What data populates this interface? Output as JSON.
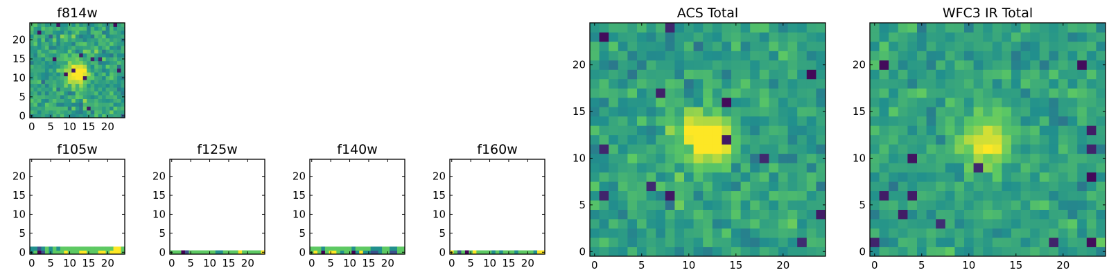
{
  "figure": {
    "colormap": [
      "#440154",
      "#3b528b",
      "#21908d",
      "#5dc963",
      "#fde725"
    ],
    "background": "#ffffff"
  },
  "chart_data": [
    {
      "type": "heatmap",
      "name": "f814w",
      "title": "f814w",
      "xlim": [
        0,
        25
      ],
      "ylim": [
        0,
        25
      ],
      "xticks": [
        0,
        5,
        10,
        15,
        20
      ],
      "yticks": [
        0,
        5,
        10,
        15,
        20
      ],
      "rows": 25,
      "cols": 25,
      "source_center": [
        12,
        11
      ],
      "source_width": 2.0,
      "source_amp": 1.3,
      "noise_level": 0.62,
      "seed": 11
    },
    {
      "type": "heatmap",
      "name": "f105w",
      "title": "f105w",
      "xlim": [
        0,
        25
      ],
      "ylim": [
        0,
        25
      ],
      "xticks": [
        0,
        5,
        10,
        15,
        20
      ],
      "yticks": [
        0,
        5,
        10,
        15,
        20
      ],
      "rows": 2,
      "cols": 25,
      "strip_values": [
        [
          2,
          3,
          0,
          1,
          3,
          2,
          3,
          3,
          3,
          4,
          3,
          3,
          3,
          4,
          4,
          3,
          3,
          3,
          4,
          4,
          3,
          4,
          4,
          4,
          3
        ],
        [
          2,
          2,
          1,
          2,
          3,
          2,
          3,
          2,
          3,
          3,
          3,
          3,
          3,
          3,
          3,
          3,
          3,
          3,
          3,
          3,
          3,
          3,
          4,
          4,
          3
        ]
      ]
    },
    {
      "type": "heatmap",
      "name": "f125w",
      "title": "f125w",
      "xlim": [
        0,
        25
      ],
      "ylim": [
        0,
        25
      ],
      "xticks": [
        0,
        5,
        10,
        15,
        20
      ],
      "yticks": [
        0,
        5,
        10,
        15,
        20
      ],
      "rows": 1,
      "cols": 25,
      "strip_values": [
        [
          3,
          3,
          3,
          0,
          1,
          3,
          3,
          3,
          3,
          3,
          3,
          3,
          2,
          2,
          3,
          3,
          3,
          3,
          4,
          3,
          3,
          3,
          3,
          3,
          4
        ]
      ]
    },
    {
      "type": "heatmap",
      "name": "f140w",
      "title": "f140w",
      "xlim": [
        0,
        25
      ],
      "ylim": [
        0,
        25
      ],
      "xticks": [
        0,
        5,
        10,
        15,
        20
      ],
      "yticks": [
        0,
        5,
        10,
        15,
        20
      ],
      "rows": 2,
      "cols": 25,
      "strip_values": [
        [
          3,
          4,
          3,
          0,
          3,
          4,
          4,
          3,
          2,
          3,
          3,
          0,
          2,
          4,
          2,
          2,
          1,
          1,
          2,
          3,
          3,
          1,
          1,
          3,
          3
        ],
        [
          3,
          3,
          3,
          2,
          3,
          3,
          3,
          3,
          3,
          3,
          3,
          2,
          3,
          3,
          3,
          3,
          2,
          2,
          2,
          3,
          3,
          2,
          2,
          3,
          3
        ]
      ]
    },
    {
      "type": "heatmap",
      "name": "f160w",
      "title": "f160w",
      "xlim": [
        0,
        25
      ],
      "ylim": [
        0,
        25
      ],
      "xticks": [
        0,
        5,
        10,
        15,
        20
      ],
      "yticks": [
        0,
        5,
        10,
        15,
        20
      ],
      "rows": 1,
      "cols": 25,
      "strip_values": [
        [
          4,
          3,
          1,
          3,
          0,
          3,
          4,
          3,
          3,
          3,
          3,
          2,
          3,
          2,
          3,
          3,
          3,
          2,
          3,
          3,
          3,
          3,
          2,
          4,
          4
        ]
      ]
    },
    {
      "type": "heatmap",
      "name": "acs-total",
      "title": "ACS Total",
      "xlim": [
        0,
        25
      ],
      "ylim": [
        0,
        25
      ],
      "xticks": [
        0,
        5,
        10,
        15,
        20
      ],
      "yticks": [
        0,
        5,
        10,
        15,
        20
      ],
      "rows": 25,
      "cols": 25,
      "source_center": [
        12,
        12
      ],
      "source_width": 1.8,
      "source_amp": 1.4,
      "noise_level": 0.55,
      "seed": 23
    },
    {
      "type": "heatmap",
      "name": "wfc3-ir-total",
      "title": "WFC3 IR Total",
      "xlim": [
        0,
        25
      ],
      "ylim": [
        0,
        25
      ],
      "xticks": [
        0,
        5,
        10,
        15,
        20
      ],
      "yticks": [
        0,
        5,
        10,
        15,
        20
      ],
      "rows": 25,
      "cols": 25,
      "source_center": [
        12,
        12
      ],
      "source_width": 1.8,
      "source_amp": 1.1,
      "noise_level": 0.5,
      "seed": 47
    }
  ]
}
